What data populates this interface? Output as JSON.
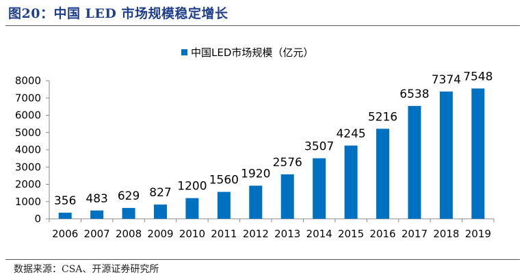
{
  "figure": {
    "title": "图20：中国 LED 市场规模稳定增长",
    "source": "数据来源：CSA、开源证券研究所"
  },
  "colors": {
    "bar": "#0070c0",
    "title": "#1f3f8c"
  },
  "chart_data": {
    "type": "bar",
    "categories": [
      "2006",
      "2007",
      "2008",
      "2009",
      "2010",
      "2011",
      "2012",
      "2013",
      "2014",
      "2015",
      "2016",
      "2017",
      "2018",
      "2019"
    ],
    "series": [
      {
        "name": "中国LED市场规模（亿元）",
        "values": [
          356,
          483,
          629,
          827,
          1200,
          1560,
          1920,
          2576,
          3507,
          4245,
          5216,
          6538,
          7374,
          7548
        ]
      }
    ],
    "title": "",
    "xlabel": "",
    "ylabel": "",
    "ylim": [
      0,
      8000
    ],
    "yticks": [
      0,
      1000,
      2000,
      3000,
      4000,
      5000,
      6000,
      7000,
      8000
    ],
    "grid": false,
    "legend": "top-center",
    "data_labels": true
  }
}
